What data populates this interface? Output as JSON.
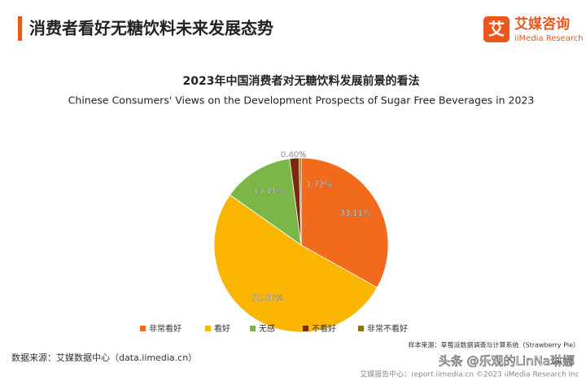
{
  "header": {
    "title": "消费者看好无糖饮料未来发展态势",
    "logo_cn": "艾媒咨询",
    "logo_en": "iiMedia Research",
    "logo_mark": "艾"
  },
  "chart_data": {
    "type": "pie",
    "title": "2023年中国消费者对无糖饮料发展前景的看法",
    "subtitle": "Chinese Consumers' Views on the Development Prospects of Sugar Free Beverages in 2023",
    "categories": [
      "非常看好",
      "看好",
      "无感",
      "不看好",
      "非常不看好"
    ],
    "values": [
      33.11,
      51.66,
      13.11,
      1.72,
      0.4
    ],
    "value_labels": [
      "33.11%",
      "51.66%",
      "13.11%",
      "1.72%",
      "0.40%"
    ],
    "colors": [
      "#f26b1d",
      "#f9b500",
      "#7ab648",
      "#7b2a0e",
      "#8b6f1e"
    ],
    "legend": "bottom"
  },
  "footer": {
    "source": "数据来源：艾媒数据中心（data.iimedia.cn）",
    "sample": "样本来源：草莓派数据调查与计算系统（Strawberry Pie）",
    "report": "艾媒报告中心：report.iimedia.cn  ©2023  iiMedia Research Inc",
    "watermark": "头条 @乐观的LinNa琳娜"
  }
}
